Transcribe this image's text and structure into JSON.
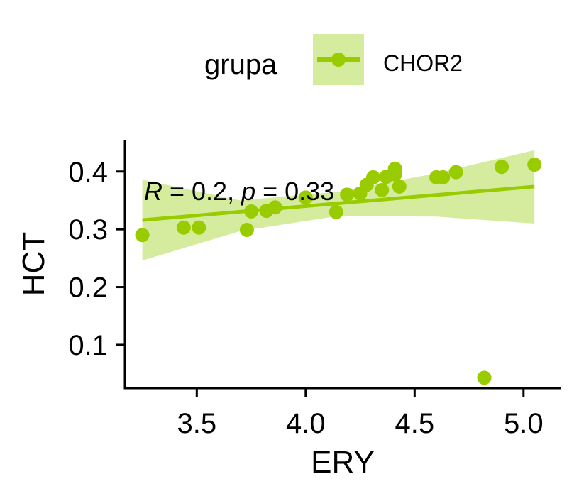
{
  "legend": {
    "title": "grupa",
    "entries": [
      "CHOR2"
    ]
  },
  "annotation": {
    "r_symbol": "R",
    "r_text": " = 0.2, ",
    "p_symbol": "p",
    "p_text": " = 0.33"
  },
  "chart_data": {
    "type": "scatter",
    "xlabel": "ERY",
    "ylabel": "HCT",
    "xlim": [
      3.17,
      5.17
    ],
    "ylim": [
      0.025,
      0.455
    ],
    "x_ticks": [
      "3.5",
      "4.0",
      "4.5",
      "5.0"
    ],
    "x_tick_values": [
      3.5,
      4.0,
      4.5,
      5.0
    ],
    "y_ticks": [
      "0.1",
      "0.2",
      "0.3",
      "0.4"
    ],
    "y_tick_values": [
      0.1,
      0.2,
      0.3,
      0.4
    ],
    "grid": false,
    "legend_position": "top",
    "series": [
      {
        "name": "CHOR2",
        "color": "#99CC00",
        "band_color": "#D5EC9E",
        "points": [
          {
            "x": 3.25,
            "y": 0.29
          },
          {
            "x": 3.44,
            "y": 0.303
          },
          {
            "x": 3.51,
            "y": 0.303
          },
          {
            "x": 3.73,
            "y": 0.299
          },
          {
            "x": 3.75,
            "y": 0.331
          },
          {
            "x": 3.82,
            "y": 0.332
          },
          {
            "x": 3.86,
            "y": 0.338
          },
          {
            "x": 4.0,
            "y": 0.355
          },
          {
            "x": 4.14,
            "y": 0.33
          },
          {
            "x": 4.19,
            "y": 0.36
          },
          {
            "x": 4.25,
            "y": 0.362
          },
          {
            "x": 4.28,
            "y": 0.377
          },
          {
            "x": 4.31,
            "y": 0.39
          },
          {
            "x": 4.35,
            "y": 0.368
          },
          {
            "x": 4.37,
            "y": 0.391
          },
          {
            "x": 4.41,
            "y": 0.395
          },
          {
            "x": 4.41,
            "y": 0.405
          },
          {
            "x": 4.43,
            "y": 0.374
          },
          {
            "x": 4.6,
            "y": 0.39
          },
          {
            "x": 4.63,
            "y": 0.39
          },
          {
            "x": 4.69,
            "y": 0.399
          },
          {
            "x": 4.82,
            "y": 0.043
          },
          {
            "x": 4.9,
            "y": 0.408
          },
          {
            "x": 5.05,
            "y": 0.412
          }
        ],
        "fit": {
          "x": [
            3.25,
            5.05
          ],
          "y": [
            0.316,
            0.374
          ]
        },
        "confidence_band": {
          "x": [
            3.25,
            3.7,
            4.15,
            4.6,
            5.05
          ],
          "lower": [
            0.246,
            0.297,
            0.323,
            0.322,
            0.31
          ],
          "upper": [
            0.386,
            0.35,
            0.365,
            0.397,
            0.437
          ]
        }
      }
    ]
  }
}
